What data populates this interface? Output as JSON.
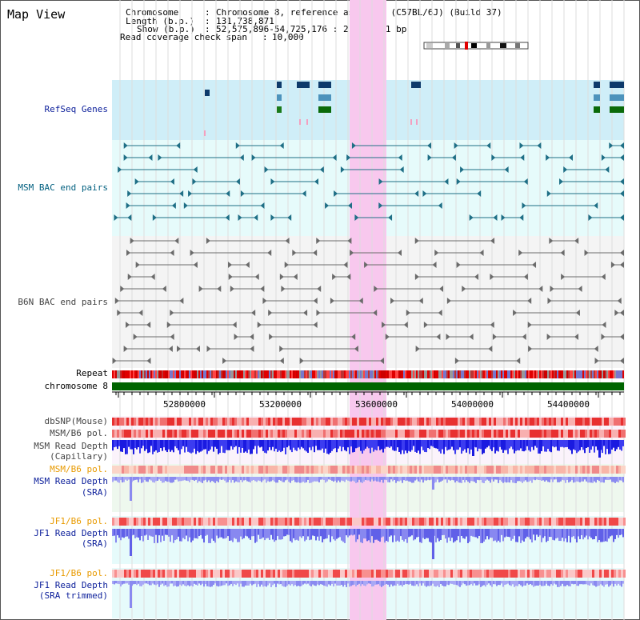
{
  "app": {
    "title": "Map View"
  },
  "header": {
    "chromosome_key": "Chromosome",
    "chromosome_value": "Chromosome 8, reference assembly (C57BL/6J) (Build 37)",
    "length_key": "Length (b.p.)",
    "length_value": "131,738,871",
    "show_key": "Show (b.p.)",
    "show_value": "52,575,896-54,725,176 : 2,149,281 bp",
    "coverage_key": "Read coverage check span",
    "coverage_value": "10,000"
  },
  "tracks": {
    "refseq": "RefSeq Genes",
    "msm_bac": "MSM BAC end pairs",
    "b6n_bac": "B6N BAC end pairs",
    "repeat": "Repeat",
    "chromosome": "chromosome 8",
    "dbsnp": "dbSNP(Mouse)",
    "msm_b6_pol": "MSM/B6 pol.",
    "msm_read_depth_cap_1": "MSM Read Depth",
    "msm_read_depth_cap_2": "(Capillary)",
    "msm_b6_pol_sra": "MSM/B6 pol.",
    "msm_read_depth_sra_1": "MSM Read Depth",
    "msm_read_depth_sra_2": "(SRA)",
    "jf1_b6_pol": "JF1/B6 pol.",
    "jf1_read_depth_1": "JF1 Read Depth",
    "jf1_read_depth_2": "(SRA)",
    "jf1_b6_pol_trim": "JF1/B6 pol.",
    "jf1_trim_depth_1": "JF1 Read Depth",
    "jf1_trim_depth_2": "(SRA trimmed)"
  },
  "axis": {
    "ticks": [
      "52800000",
      "53200000",
      "53600000",
      "54000000",
      "54400000"
    ]
  },
  "colors": {
    "label_blue": "#0b1e9a",
    "label_teal": "#005f7f",
    "label_gray": "#444444",
    "label_orange": "#e89a00",
    "highlight": "#f8c8ee",
    "refseq_bg": "#cfeef8",
    "bac_bg": "#e6fbfb",
    "chromosome_bar": "#006400"
  }
}
